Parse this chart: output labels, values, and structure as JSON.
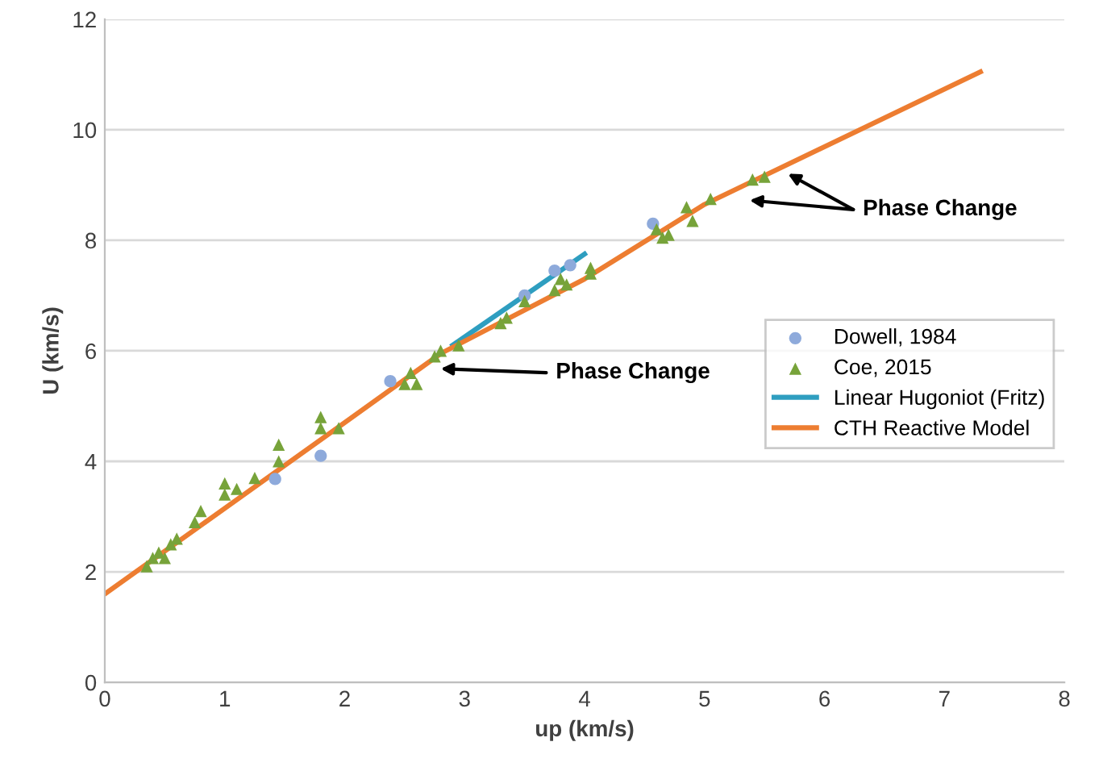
{
  "chart_data": {
    "type": "scatter",
    "xlabel": "up (km/s)",
    "ylabel": "U (km/s)",
    "xlim": [
      0,
      8
    ],
    "ylim": [
      0,
      12
    ],
    "xticks": [
      0,
      1,
      2,
      3,
      4,
      5,
      6,
      7,
      8
    ],
    "yticks": [
      0,
      2,
      4,
      6,
      8,
      10,
      12
    ],
    "grid": "y",
    "legend": "right",
    "annotations": [
      "Phase Change",
      "Phase Change"
    ],
    "series": [
      {
        "name": "Dowell, 1984",
        "type": "scatter",
        "marker": "circle",
        "color": "#8eaadb",
        "x": [
          1.42,
          1.8,
          2.38,
          2.55,
          3.5,
          3.75,
          3.88,
          4.57
        ],
        "values": [
          3.68,
          4.1,
          5.45,
          null,
          7.0,
          7.45,
          7.55,
          8.3
        ]
      },
      {
        "name": "Coe, 2015",
        "type": "scatter",
        "marker": "triangle",
        "color": "#77a33a",
        "x": [
          0.35,
          0.4,
          0.45,
          0.5,
          0.55,
          0.6,
          0.75,
          0.8,
          1.0,
          1.0,
          1.1,
          1.25,
          1.45,
          1.45,
          1.8,
          1.8,
          1.95,
          2.5,
          2.55,
          2.6,
          2.75,
          2.8,
          2.95,
          3.3,
          3.35,
          3.5,
          3.75,
          3.8,
          3.85,
          4.05,
          4.05,
          4.6,
          4.65,
          4.7,
          4.85,
          4.9,
          5.05,
          5.4,
          5.5
        ],
        "values": [
          2.1,
          2.25,
          2.35,
          2.25,
          2.5,
          2.6,
          2.9,
          3.1,
          3.4,
          3.6,
          3.5,
          3.7,
          4.0,
          4.3,
          4.6,
          4.8,
          4.6,
          5.4,
          5.6,
          5.4,
          5.9,
          6.0,
          6.1,
          6.5,
          6.6,
          6.9,
          7.1,
          7.3,
          7.2,
          7.5,
          7.4,
          8.2,
          8.05,
          8.1,
          8.6,
          8.35,
          8.75,
          9.1,
          9.15
        ]
      },
      {
        "name": "Linear Hugoniot (Fritz)",
        "type": "line",
        "marker": "none",
        "color": "#2e9ec0",
        "x": [
          2.9,
          4.0
        ],
        "values": [
          6.1,
          7.75
        ]
      },
      {
        "name": "CTH Reactive Model",
        "type": "line",
        "marker": "none",
        "color": "#ed7d31",
        "x": [
          0,
          2,
          2.8,
          4,
          5,
          7.3
        ],
        "values": [
          1.6,
          4.7,
          5.95,
          7.3,
          8.65,
          11.05
        ]
      }
    ]
  }
}
